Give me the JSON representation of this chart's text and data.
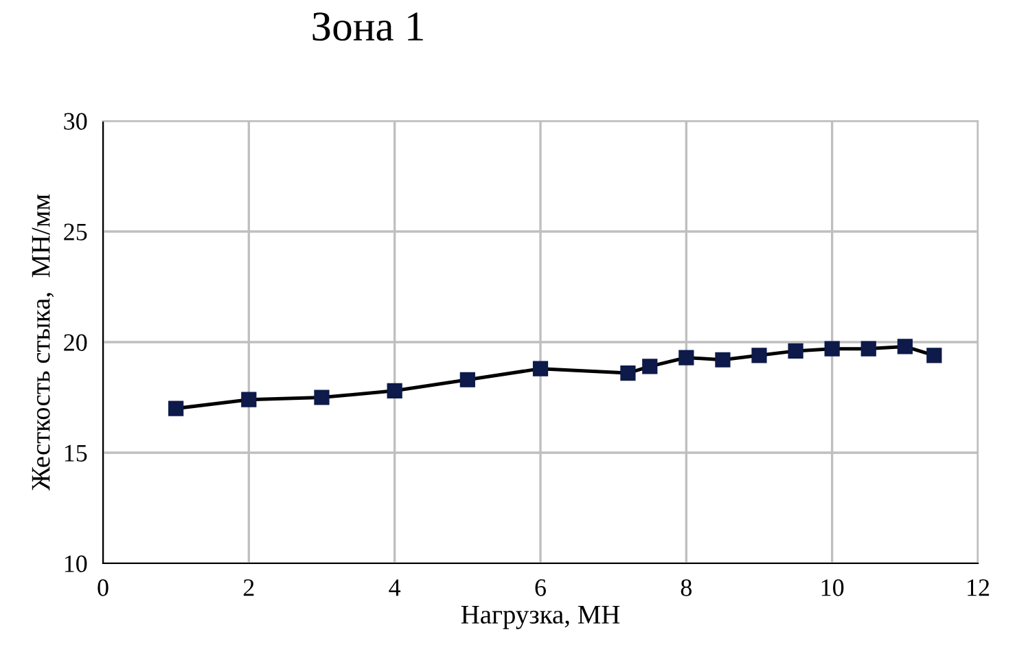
{
  "chart_data": {
    "type": "line",
    "title": "Зона 1",
    "xlabel": "Нагрузка, МН",
    "ylabel": "Жесткость стыка,  МН/мм",
    "x": [
      1,
      2,
      3,
      4,
      5,
      6,
      7.2,
      7.5,
      8,
      8.5,
      9,
      9.5,
      10,
      10.5,
      11,
      11.4
    ],
    "series": [
      {
        "color": "#0d1a4a",
        "values": [
          17.0,
          17.4,
          17.5,
          17.8,
          18.3,
          18.8,
          18.6,
          18.9,
          19.3,
          19.2,
          19.4,
          19.6,
          19.7,
          19.7,
          19.8,
          19.4
        ]
      }
    ],
    "xlim": [
      0,
      12
    ],
    "xticks": [
      0,
      2,
      4,
      6,
      8,
      10,
      12
    ],
    "ylim": [
      10,
      30
    ],
    "yticks": [
      10,
      15,
      20,
      25,
      30
    ],
    "grid": true,
    "marker": "square",
    "line_style": "solid",
    "legend": false
  }
}
